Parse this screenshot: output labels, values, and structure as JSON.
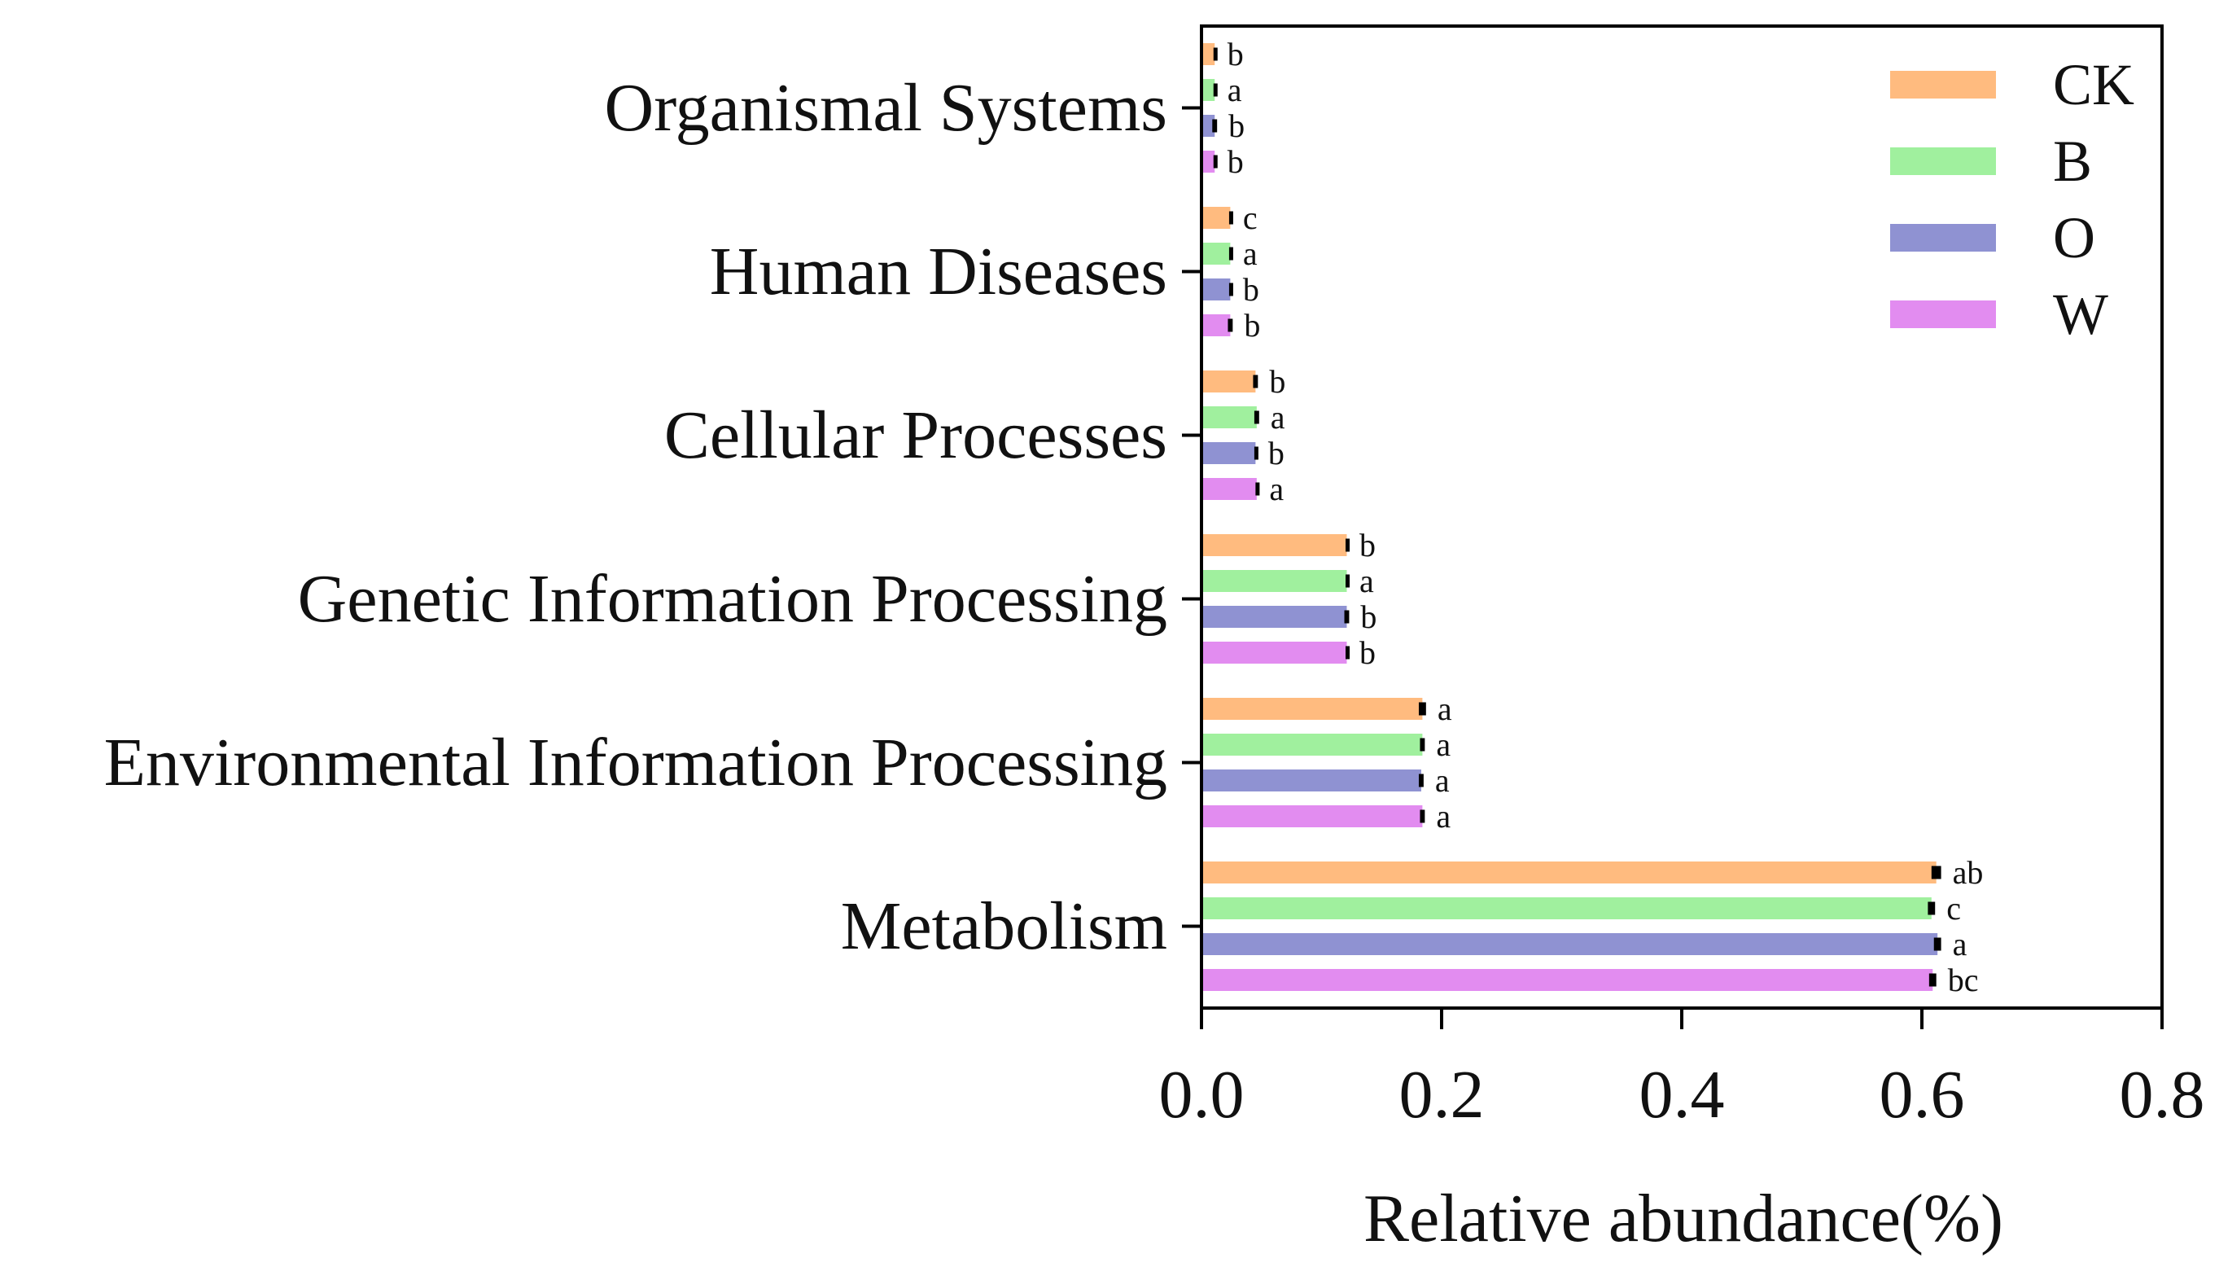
{
  "chart_data": {
    "type": "bar",
    "orientation": "horizontal",
    "title": "",
    "xlabel": "Relative abundance(%)",
    "ylabel": "",
    "xlim": [
      0,
      0.8
    ],
    "xticks": [
      0.0,
      0.2,
      0.4,
      0.6,
      0.8
    ],
    "xtick_labels": [
      "0.0",
      "0.2",
      "0.4",
      "0.6",
      "0.8"
    ],
    "legend_position": "top-right",
    "categories": [
      "Organismal Systems",
      "Human Diseases",
      "Cellular Processes",
      "Genetic Information Processing",
      "Environmental Information Processing",
      "Metabolism"
    ],
    "series": [
      {
        "name": "CK",
        "color": "#FFBB7F",
        "values": [
          0.011,
          0.024,
          0.045,
          0.121,
          0.184,
          0.612
        ],
        "errors": [
          0.001,
          0.001,
          0.002,
          0.001,
          0.003,
          0.004
        ],
        "labels": [
          "b",
          "c",
          "b",
          "b",
          "a",
          "ab"
        ]
      },
      {
        "name": "B",
        "color": "#A0F09E",
        "values": [
          0.011,
          0.024,
          0.046,
          0.121,
          0.184,
          0.608
        ],
        "errors": [
          0.001,
          0.001,
          0.002,
          0.001,
          0.002,
          0.003
        ],
        "labels": [
          "a",
          "a",
          "a",
          "a",
          "a",
          "c"
        ]
      },
      {
        "name": "O",
        "color": "#8F92D2",
        "values": [
          0.011,
          0.024,
          0.045,
          0.121,
          0.183,
          0.613
        ],
        "errors": [
          0.002,
          0.001,
          0.001,
          0.002,
          0.002,
          0.003
        ],
        "labels": [
          "b",
          "b",
          "b",
          "b",
          "a",
          "a"
        ]
      },
      {
        "name": "W",
        "color": "#E28CF0",
        "values": [
          0.011,
          0.024,
          0.046,
          0.121,
          0.184,
          0.609
        ],
        "errors": [
          0.001,
          0.002,
          0.001,
          0.001,
          0.002,
          0.003
        ],
        "labels": [
          "b",
          "b",
          "a",
          "b",
          "a",
          "bc"
        ]
      }
    ]
  }
}
